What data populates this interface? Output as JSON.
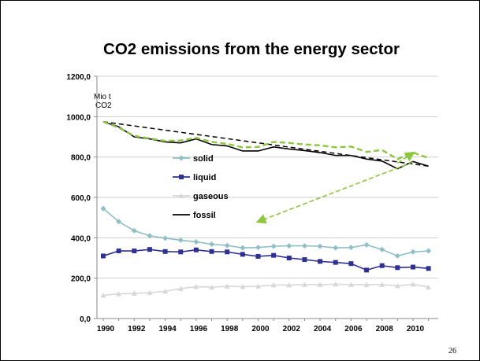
{
  "chart_data": {
    "type": "line",
    "title": "CO2 emissions from the energy sector",
    "unit_label": [
      "Mio t",
      "CO2"
    ],
    "xlabel": "",
    "ylabel": "",
    "x_categories": [
      "1990",
      "1991",
      "1992",
      "1993",
      "1994",
      "1995",
      "1996",
      "1997",
      "1998",
      "1999",
      "2000",
      "2001",
      "2002",
      "2003",
      "2004",
      "2005",
      "2006",
      "2007",
      "2008",
      "2009",
      "2010",
      "2011"
    ],
    "x_tick_labels": [
      "1990",
      "1992",
      "1994",
      "1996",
      "1998",
      "2000",
      "2002",
      "2004",
      "2006",
      "2008",
      "2010"
    ],
    "y_tick_labels": [
      "0,0",
      "200,0",
      "400,0",
      "600,0",
      "800,0",
      "1000,0",
      "1200,0"
    ],
    "ylim": [
      0,
      1200
    ],
    "grid": "horizontal",
    "legend_position": "center-left",
    "series": [
      {
        "name": "solid",
        "color": "#8fbfc6",
        "marker": "diamond",
        "values": [
          545,
          480,
          435,
          410,
          398,
          388,
          380,
          368,
          362,
          350,
          352,
          358,
          360,
          360,
          358,
          350,
          352,
          365,
          342,
          310,
          330,
          335
        ]
      },
      {
        "name": "liquid",
        "color": "#2e3192",
        "marker": "square",
        "values": [
          310,
          335,
          335,
          342,
          332,
          330,
          340,
          332,
          330,
          318,
          308,
          313,
          300,
          292,
          283,
          278,
          272,
          240,
          262,
          252,
          255,
          248
        ]
      },
      {
        "name": "gaseous",
        "color": "#d8d8d8",
        "marker": "triangle",
        "values": [
          115,
          122,
          125,
          128,
          135,
          148,
          158,
          155,
          160,
          158,
          160,
          166,
          166,
          168,
          168,
          170,
          168,
          168,
          168,
          162,
          170,
          155
        ]
      },
      {
        "name": "fossil",
        "color": "#000000",
        "marker": "none",
        "values": [
          975,
          950,
          900,
          890,
          875,
          870,
          890,
          862,
          855,
          830,
          830,
          850,
          840,
          832,
          822,
          808,
          808,
          790,
          780,
          742,
          778,
          755
        ]
      },
      {
        "name": "",
        "color": "#8dc63f",
        "marker": "none",
        "dashed": true,
        "values": [
          975,
          945,
          905,
          892,
          880,
          882,
          895,
          875,
          865,
          848,
          850,
          875,
          870,
          862,
          858,
          848,
          852,
          825,
          835,
          790,
          822,
          795
        ]
      }
    ],
    "trend_line": {
      "from": [
        1990,
        975
      ],
      "to": [
        2011,
        755
      ],
      "color": "#000000"
    },
    "arrows": [
      {
        "from": [
          2010,
          775
        ],
        "to": [
          2000,
          480
        ],
        "color": "#8dc63f"
      },
      {
        "from": [
          2009,
          770
        ],
        "to": [
          2010,
          820
        ],
        "color": "#8dc63f"
      }
    ]
  },
  "page_number": "26"
}
